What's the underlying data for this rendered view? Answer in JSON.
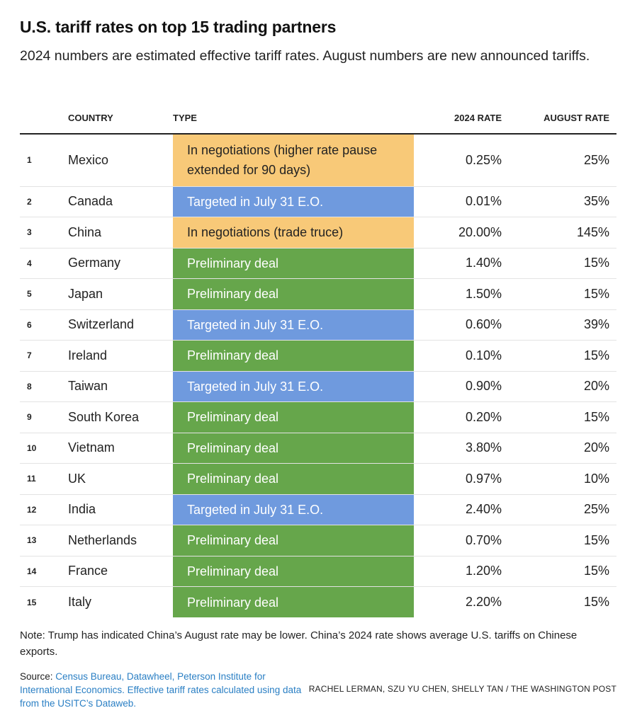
{
  "title": "U.S. tariff rates on top 15 trading partners",
  "subtitle": "2024 numbers are estimated effective tariff rates. August numbers are new announced tariffs.",
  "colors": {
    "negotiations": "#f8c978",
    "targeted": "#6f9ade",
    "preliminary": "#66a64b"
  },
  "chart_data": {
    "type": "table",
    "columns": [
      "",
      "COUNTRY",
      "TYPE",
      "2024 RATE",
      "AUGUST RATE"
    ],
    "rows": [
      {
        "rank": "1",
        "country": "Mexico",
        "type": "In negotiations (higher rate pause extended for 90 days)",
        "category": "negotiations",
        "rate_2024": "0.25%",
        "rate_august": "25%"
      },
      {
        "rank": "2",
        "country": "Canada",
        "type": "Targeted in July 31 E.O.",
        "category": "targeted",
        "rate_2024": "0.01%",
        "rate_august": "35%"
      },
      {
        "rank": "3",
        "country": "China",
        "type": "In negotiations (trade truce)",
        "category": "negotiations",
        "rate_2024": "20.00%",
        "rate_august": "145%"
      },
      {
        "rank": "4",
        "country": "Germany",
        "type": "Preliminary deal",
        "category": "preliminary",
        "rate_2024": "1.40%",
        "rate_august": "15%"
      },
      {
        "rank": "5",
        "country": "Japan",
        "type": "Preliminary deal",
        "category": "preliminary",
        "rate_2024": "1.50%",
        "rate_august": "15%"
      },
      {
        "rank": "6",
        "country": "Switzerland",
        "type": "Targeted in July 31 E.O.",
        "category": "targeted",
        "rate_2024": "0.60%",
        "rate_august": "39%"
      },
      {
        "rank": "7",
        "country": "Ireland",
        "type": "Preliminary deal",
        "category": "preliminary",
        "rate_2024": "0.10%",
        "rate_august": "15%"
      },
      {
        "rank": "8",
        "country": "Taiwan",
        "type": "Targeted in July 31 E.O.",
        "category": "targeted",
        "rate_2024": "0.90%",
        "rate_august": "20%"
      },
      {
        "rank": "9",
        "country": "South Korea",
        "type": "Preliminary deal",
        "category": "preliminary",
        "rate_2024": "0.20%",
        "rate_august": "15%"
      },
      {
        "rank": "10",
        "country": "Vietnam",
        "type": "Preliminary deal",
        "category": "preliminary",
        "rate_2024": "3.80%",
        "rate_august": "20%"
      },
      {
        "rank": "11",
        "country": "UK",
        "type": "Preliminary deal",
        "category": "preliminary",
        "rate_2024": "0.97%",
        "rate_august": "10%"
      },
      {
        "rank": "12",
        "country": "India",
        "type": "Targeted in July 31 E.O.",
        "category": "targeted",
        "rate_2024": "2.40%",
        "rate_august": "25%"
      },
      {
        "rank": "13",
        "country": "Netherlands",
        "type": "Preliminary deal",
        "category": "preliminary",
        "rate_2024": "0.70%",
        "rate_august": "15%"
      },
      {
        "rank": "14",
        "country": "France",
        "type": "Preliminary deal",
        "category": "preliminary",
        "rate_2024": "1.20%",
        "rate_august": "15%"
      },
      {
        "rank": "15",
        "country": "Italy",
        "type": "Preliminary deal",
        "category": "preliminary",
        "rate_2024": "2.20%",
        "rate_august": "15%"
      }
    ]
  },
  "note": "Note: Trump has indicated China’s August rate may be lower. China’s 2024 rate shows average U.S. tariffs on Chinese exports.",
  "source": {
    "label": "Source: ",
    "text": "Census Bureau, Datawheel, Peterson Institute for International Economics. Effective tariff rates calculated using data from the USITC’s Dataweb."
  },
  "credit": "RACHEL LERMAN, SZU YU CHEN, SHELLY TAN / THE WASHINGTON POST"
}
